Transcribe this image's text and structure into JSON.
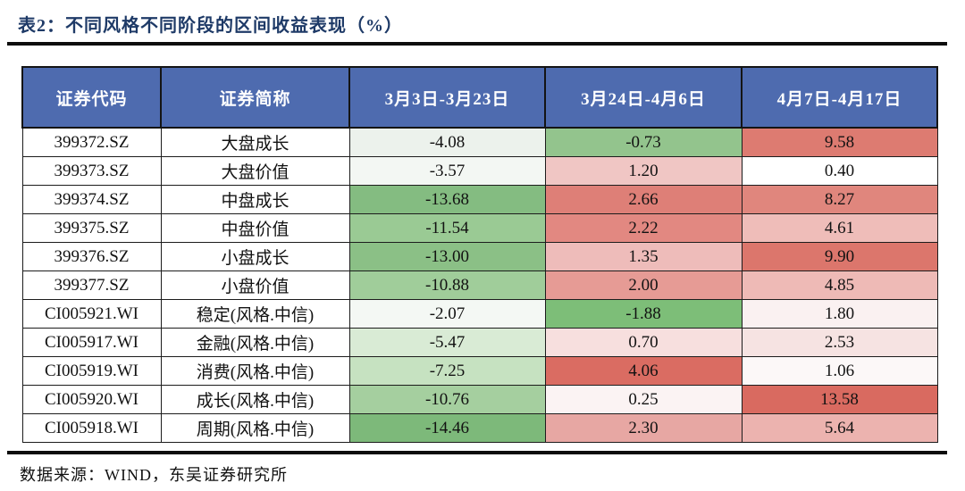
{
  "title": "表2：不同风格不同阶段的区间收益表现（%）",
  "source": "数据来源：WIND，东吴证券研究所",
  "colors": {
    "title_color": "#1e3a67",
    "header_bg": "#4e6baf",
    "header_text": "#ffffff",
    "border": "#1c1c1c",
    "rule": "#0d0d0d",
    "negative_scale_green": "#7db97a",
    "positive_scale_red": "#d96a60"
  },
  "table": {
    "columns": [
      "证券代码",
      "证券简称",
      "3月3日-3月23日",
      "3月24日-4月6日",
      "4月7日-4月17日"
    ],
    "rows": [
      {
        "code": "399372.SZ",
        "name": "大盘成长",
        "values": [
          "-4.08",
          "-0.73",
          "9.58"
        ],
        "cell_colors": [
          "#ecf2ec",
          "#93c48d",
          "#dd7b71"
        ]
      },
      {
        "code": "399373.SZ",
        "name": "大盘价值",
        "values": [
          "-3.57",
          "1.20",
          "0.40"
        ],
        "cell_colors": [
          "#f3f7f3",
          "#f0c6c4",
          "#ffffff"
        ]
      },
      {
        "code": "399374.SZ",
        "name": "中盘成长",
        "values": [
          "-13.68",
          "2.66",
          "8.27"
        ],
        "cell_colors": [
          "#84bc81",
          "#de7f77",
          "#e0867d"
        ]
      },
      {
        "code": "399375.SZ",
        "name": "中盘价值",
        "values": [
          "-11.54",
          "2.22",
          "4.61"
        ],
        "cell_colors": [
          "#9aca94",
          "#e28881",
          "#efbdb9"
        ]
      },
      {
        "code": "399376.SZ",
        "name": "小盘成长",
        "values": [
          "-13.00",
          "1.35",
          "9.90"
        ],
        "cell_colors": [
          "#8bc086",
          "#eebcba",
          "#dc766c"
        ]
      },
      {
        "code": "399377.SZ",
        "name": "小盘价值",
        "values": [
          "-10.88",
          "2.00",
          "4.85"
        ],
        "cell_colors": [
          "#a0cd9a",
          "#e69b95",
          "#eebab6"
        ]
      },
      {
        "code": "CI005921.WI",
        "name": "稳定(风格.中信)",
        "values": [
          "-2.07",
          "-1.88",
          "1.80"
        ],
        "cell_colors": [
          "#f4f8f4",
          "#7dbe78",
          "#faf1f1"
        ]
      },
      {
        "code": "CI005917.WI",
        "name": "金融(风格.中信)",
        "values": [
          "-5.47",
          "0.70",
          "2.53"
        ],
        "cell_colors": [
          "#d9ebd5",
          "#f7dfde",
          "#f6e3e2"
        ]
      },
      {
        "code": "CI005919.WI",
        "name": "消费(风格.中信)",
        "values": [
          "-7.25",
          "4.06",
          "1.06"
        ],
        "cell_colors": [
          "#c6e2c1",
          "#da6c62",
          "#fcf8f8"
        ]
      },
      {
        "code": "CI005920.WI",
        "name": "成长(风格.中信)",
        "values": [
          "-10.76",
          "0.25",
          "13.58"
        ],
        "cell_colors": [
          "#a5cf9f",
          "#fbf3f3",
          "#d96a60"
        ]
      },
      {
        "code": "CI005918.WI",
        "name": "周期(风格.中信)",
        "values": [
          "-14.46",
          "2.30",
          "5.64"
        ],
        "cell_colors": [
          "#7db97a",
          "#e7a7a3",
          "#ecb3af"
        ]
      }
    ]
  }
}
